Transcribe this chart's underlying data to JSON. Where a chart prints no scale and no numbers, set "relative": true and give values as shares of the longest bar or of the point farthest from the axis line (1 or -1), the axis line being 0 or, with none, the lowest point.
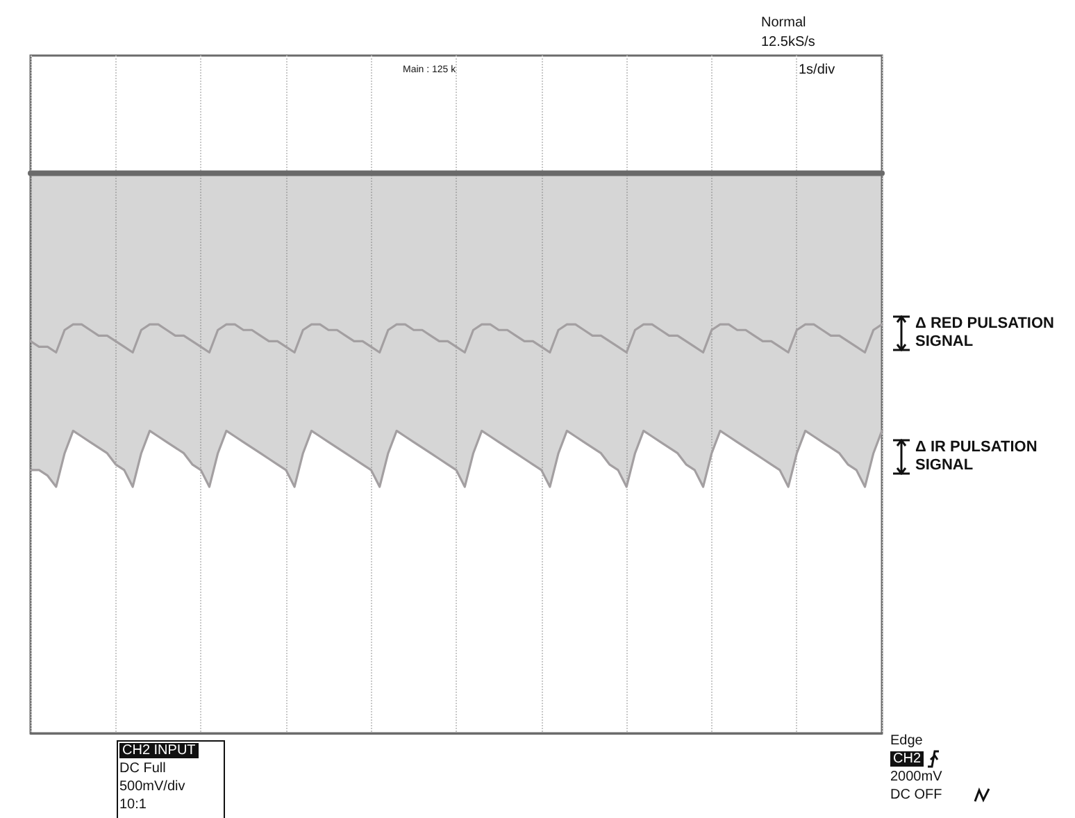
{
  "chart_data": {
    "type": "line",
    "relative": true,
    "grid": "x",
    "line_style": "solid",
    "categories": [
      null,
      null,
      null,
      null,
      null,
      null,
      null,
      null,
      null,
      null,
      null,
      null,
      null,
      null,
      null,
      null,
      null,
      null,
      null,
      null,
      null,
      null,
      null,
      null,
      null,
      null,
      null,
      null,
      null,
      null,
      null,
      null,
      null,
      null,
      null,
      null,
      null,
      null,
      null,
      null,
      null,
      null,
      null,
      null,
      null,
      null,
      null,
      null,
      null,
      null,
      null,
      null,
      null,
      null,
      null,
      null,
      null,
      null,
      null,
      null,
      null,
      null,
      null,
      null,
      null,
      null,
      null,
      null,
      null,
      null,
      null,
      null,
      null,
      null,
      null,
      null,
      null,
      null,
      null,
      null,
      null,
      null,
      null,
      null,
      null,
      null,
      null,
      null,
      null,
      null,
      null,
      null,
      null,
      null,
      null,
      null,
      null,
      null,
      null,
      null,
      null
    ],
    "series": [
      {
        "color": "#6a6a6a",
        "values": [
          1,
          1,
          1,
          1,
          1,
          1,
          1,
          1,
          1,
          1,
          1,
          1,
          1,
          1,
          1,
          1,
          1,
          1,
          1,
          1,
          1,
          1,
          1,
          1,
          1,
          1,
          1,
          1,
          1,
          1,
          1,
          1,
          1,
          1,
          1,
          1,
          1,
          1,
          1,
          1,
          1,
          1,
          1,
          1,
          1,
          1,
          1,
          1,
          1,
          1,
          1,
          1,
          1,
          1,
          1,
          1,
          1,
          1,
          1,
          1,
          1,
          1,
          1,
          1,
          1,
          1,
          1,
          1,
          1,
          1,
          1,
          1,
          1,
          1,
          1,
          1,
          1,
          1,
          1,
          1,
          1,
          1,
          1,
          1,
          1,
          1,
          1,
          1,
          1,
          1,
          1,
          1,
          1,
          1,
          1,
          1,
          1,
          1,
          1,
          1,
          1
        ],
        "lower": [
          0.47,
          0.47,
          0.46,
          0.44,
          0.5,
          0.54,
          0.53,
          0.52,
          0.51,
          0.5,
          0.48,
          0.47,
          0.44,
          0.5,
          0.54,
          0.53,
          0.52,
          0.51,
          0.5,
          0.48,
          0.47,
          0.44,
          0.5,
          0.54,
          0.53,
          0.52,
          0.51,
          0.5,
          0.49,
          0.48,
          0.47,
          0.44,
          0.5,
          0.54,
          0.53,
          0.52,
          0.51,
          0.5,
          0.49,
          0.48,
          0.47,
          0.44,
          0.5,
          0.54,
          0.53,
          0.52,
          0.51,
          0.5,
          0.49,
          0.48,
          0.47,
          0.44,
          0.5,
          0.54,
          0.53,
          0.52,
          0.51,
          0.5,
          0.49,
          0.48,
          0.47,
          0.44,
          0.5,
          0.54,
          0.53,
          0.52,
          0.51,
          0.5,
          0.48,
          0.47,
          0.44,
          0.5,
          0.54,
          0.53,
          0.52,
          0.51,
          0.5,
          0.48,
          0.47,
          0.44,
          0.5,
          0.54,
          0.53,
          0.52,
          0.51,
          0.5,
          0.49,
          0.48,
          0.47,
          0.44,
          0.5,
          0.54,
          0.53,
          0.52,
          0.51,
          0.5,
          0.48,
          0.47,
          0.44,
          0.5,
          0.54
        ],
        "upper": [
          1,
          1,
          1,
          1,
          1,
          1,
          1,
          1,
          1,
          1,
          1,
          1,
          1,
          1,
          1,
          1,
          1,
          1,
          1,
          1,
          1,
          1,
          1,
          1,
          1,
          1,
          1,
          1,
          1,
          1,
          1,
          1,
          1,
          1,
          1,
          1,
          1,
          1,
          1,
          1,
          1,
          1,
          1,
          1,
          1,
          1,
          1,
          1,
          1,
          1,
          1,
          1,
          1,
          1,
          1,
          1,
          1,
          1,
          1,
          1,
          1,
          1,
          1,
          1,
          1,
          1,
          1,
          1,
          1,
          1,
          1,
          1,
          1,
          1,
          1,
          1,
          1,
          1,
          1,
          1,
          1,
          1,
          1,
          1,
          1,
          1,
          1,
          1,
          1,
          1,
          1,
          1,
          1,
          1,
          1,
          1,
          1,
          1,
          1,
          1,
          1
        ]
      },
      {
        "color": "#a39fa1",
        "values": [
          0.7,
          0.69,
          0.69,
          0.68,
          0.72,
          0.73,
          0.73,
          0.72,
          0.71,
          0.71,
          0.7,
          0.69,
          0.68,
          0.72,
          0.73,
          0.73,
          0.72,
          0.71,
          0.71,
          0.7,
          0.69,
          0.68,
          0.72,
          0.73,
          0.73,
          0.72,
          0.72,
          0.71,
          0.7,
          0.7,
          0.69,
          0.68,
          0.72,
          0.73,
          0.73,
          0.72,
          0.72,
          0.71,
          0.7,
          0.7,
          0.69,
          0.68,
          0.72,
          0.73,
          0.73,
          0.72,
          0.72,
          0.71,
          0.7,
          0.7,
          0.69,
          0.68,
          0.72,
          0.73,
          0.73,
          0.72,
          0.72,
          0.71,
          0.7,
          0.7,
          0.69,
          0.68,
          0.72,
          0.73,
          0.73,
          0.72,
          0.71,
          0.71,
          0.7,
          0.69,
          0.68,
          0.72,
          0.73,
          0.73,
          0.72,
          0.71,
          0.71,
          0.7,
          0.69,
          0.68,
          0.72,
          0.73,
          0.73,
          0.72,
          0.72,
          0.71,
          0.7,
          0.7,
          0.69,
          0.68,
          0.72,
          0.73,
          0.73,
          0.72,
          0.71,
          0.71,
          0.7,
          0.69,
          0.68,
          0.72,
          0.73
        ]
      },
      {
        "color": "#a39fa1",
        "values": [
          0.47,
          0.47,
          0.46,
          0.44,
          0.5,
          0.54,
          0.53,
          0.52,
          0.51,
          0.5,
          0.48,
          0.47,
          0.44,
          0.5,
          0.54,
          0.53,
          0.52,
          0.51,
          0.5,
          0.48,
          0.47,
          0.44,
          0.5,
          0.54,
          0.53,
          0.52,
          0.51,
          0.5,
          0.49,
          0.48,
          0.47,
          0.44,
          0.5,
          0.54,
          0.53,
          0.52,
          0.51,
          0.5,
          0.49,
          0.48,
          0.47,
          0.44,
          0.5,
          0.54,
          0.53,
          0.52,
          0.51,
          0.5,
          0.49,
          0.48,
          0.47,
          0.44,
          0.5,
          0.54,
          0.53,
          0.52,
          0.51,
          0.5,
          0.49,
          0.48,
          0.47,
          0.44,
          0.5,
          0.54,
          0.53,
          0.52,
          0.51,
          0.5,
          0.48,
          0.47,
          0.44,
          0.5,
          0.54,
          0.53,
          0.52,
          0.51,
          0.5,
          0.48,
          0.47,
          0.44,
          0.5,
          0.54,
          0.53,
          0.52,
          0.51,
          0.5,
          0.49,
          0.48,
          0.47,
          0.44,
          0.5,
          0.54,
          0.53,
          0.52,
          0.51,
          0.5,
          0.48,
          0.47,
          0.44,
          0.5,
          0.54
        ]
      }
    ],
    "annotations": [
      "Normal",
      "12.5kS/s",
      "1s/div",
      "Main : 125 k",
      "Δ RED PULSATION SIGNAL",
      "Δ IR PULSATION SIGNAL",
      "CH2  INPUT",
      "DC Full",
      "500mV/div",
      "10:1",
      "Edge",
      "CH2",
      "2000mV",
      "DC OFF"
    ]
  }
}
